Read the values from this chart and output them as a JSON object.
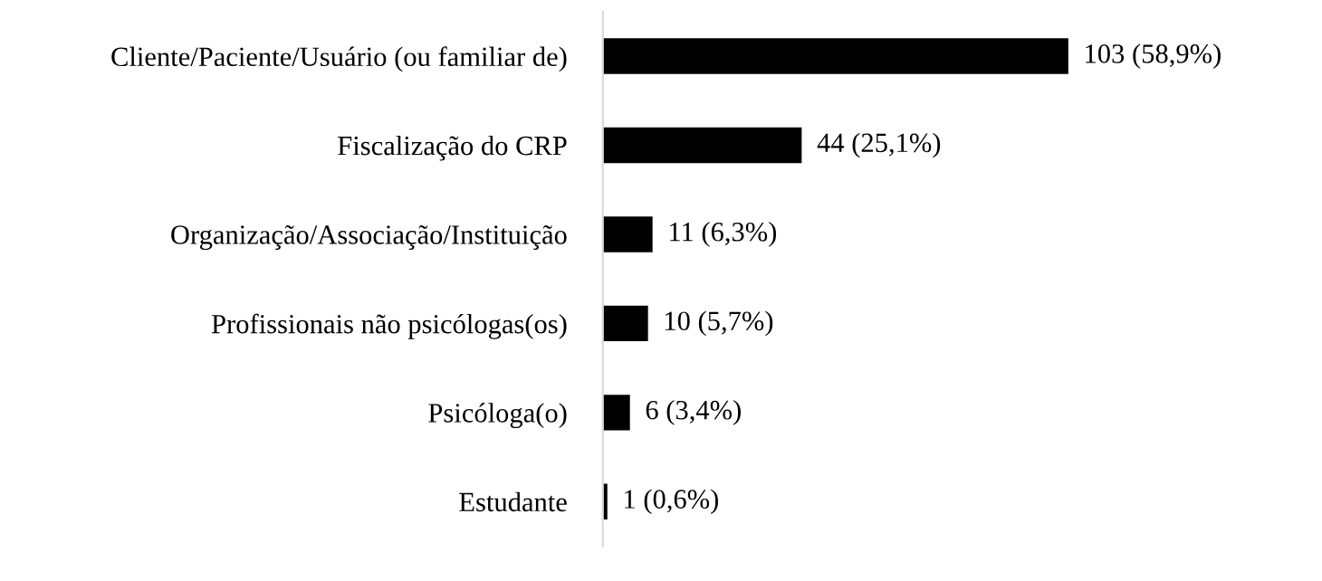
{
  "chart_data": {
    "type": "bar",
    "orientation": "horizontal",
    "categories": [
      "Cliente/Paciente/Usuário (ou familiar de)",
      "Fiscalização do CRP",
      "Organização/Associação/Instituição",
      "Profissionais não psicólogas(os)",
      "Psicóloga(o)",
      "Estudante"
    ],
    "values": [
      103,
      44,
      11,
      10,
      6,
      1
    ],
    "value_labels": [
      "103 (58,9%)",
      "44 (25,1%)",
      "11 (6,3%)",
      "10 (5,7%)",
      "6 (3,4%)",
      "1 (0,6%)"
    ],
    "color": "#000000",
    "tick_labels": "y",
    "grid": false,
    "legend": false
  }
}
